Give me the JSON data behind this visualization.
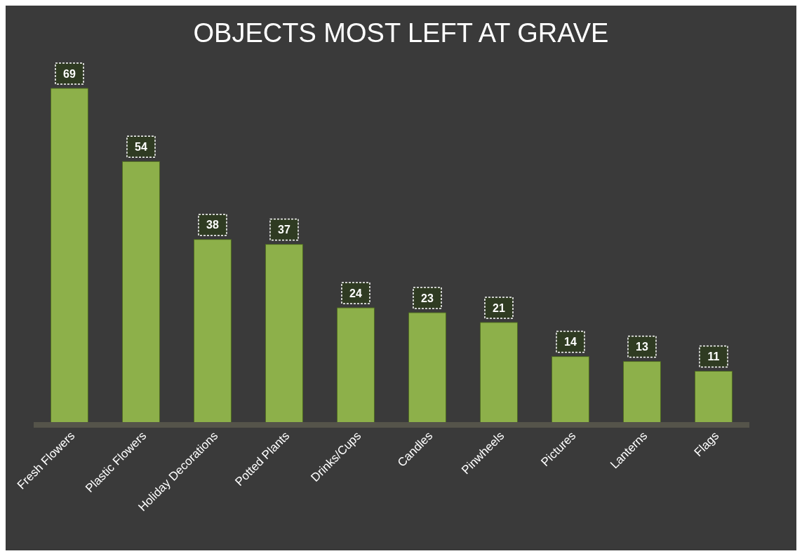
{
  "chart_data": {
    "type": "bar",
    "title": "OBJECTS MOST LEFT AT GRAVE",
    "categories": [
      "Fresh Flowers",
      "Plastic Flowers",
      "Holiday Decorations",
      "Potted Plants",
      "Drinks/Cups",
      "Candles",
      "Pinwheels",
      "Pictures",
      "Lanterns",
      "Flags"
    ],
    "values": [
      69,
      54,
      38,
      37,
      24,
      23,
      21,
      14,
      13,
      11
    ],
    "color": "#8db04a",
    "data_labels": true
  }
}
